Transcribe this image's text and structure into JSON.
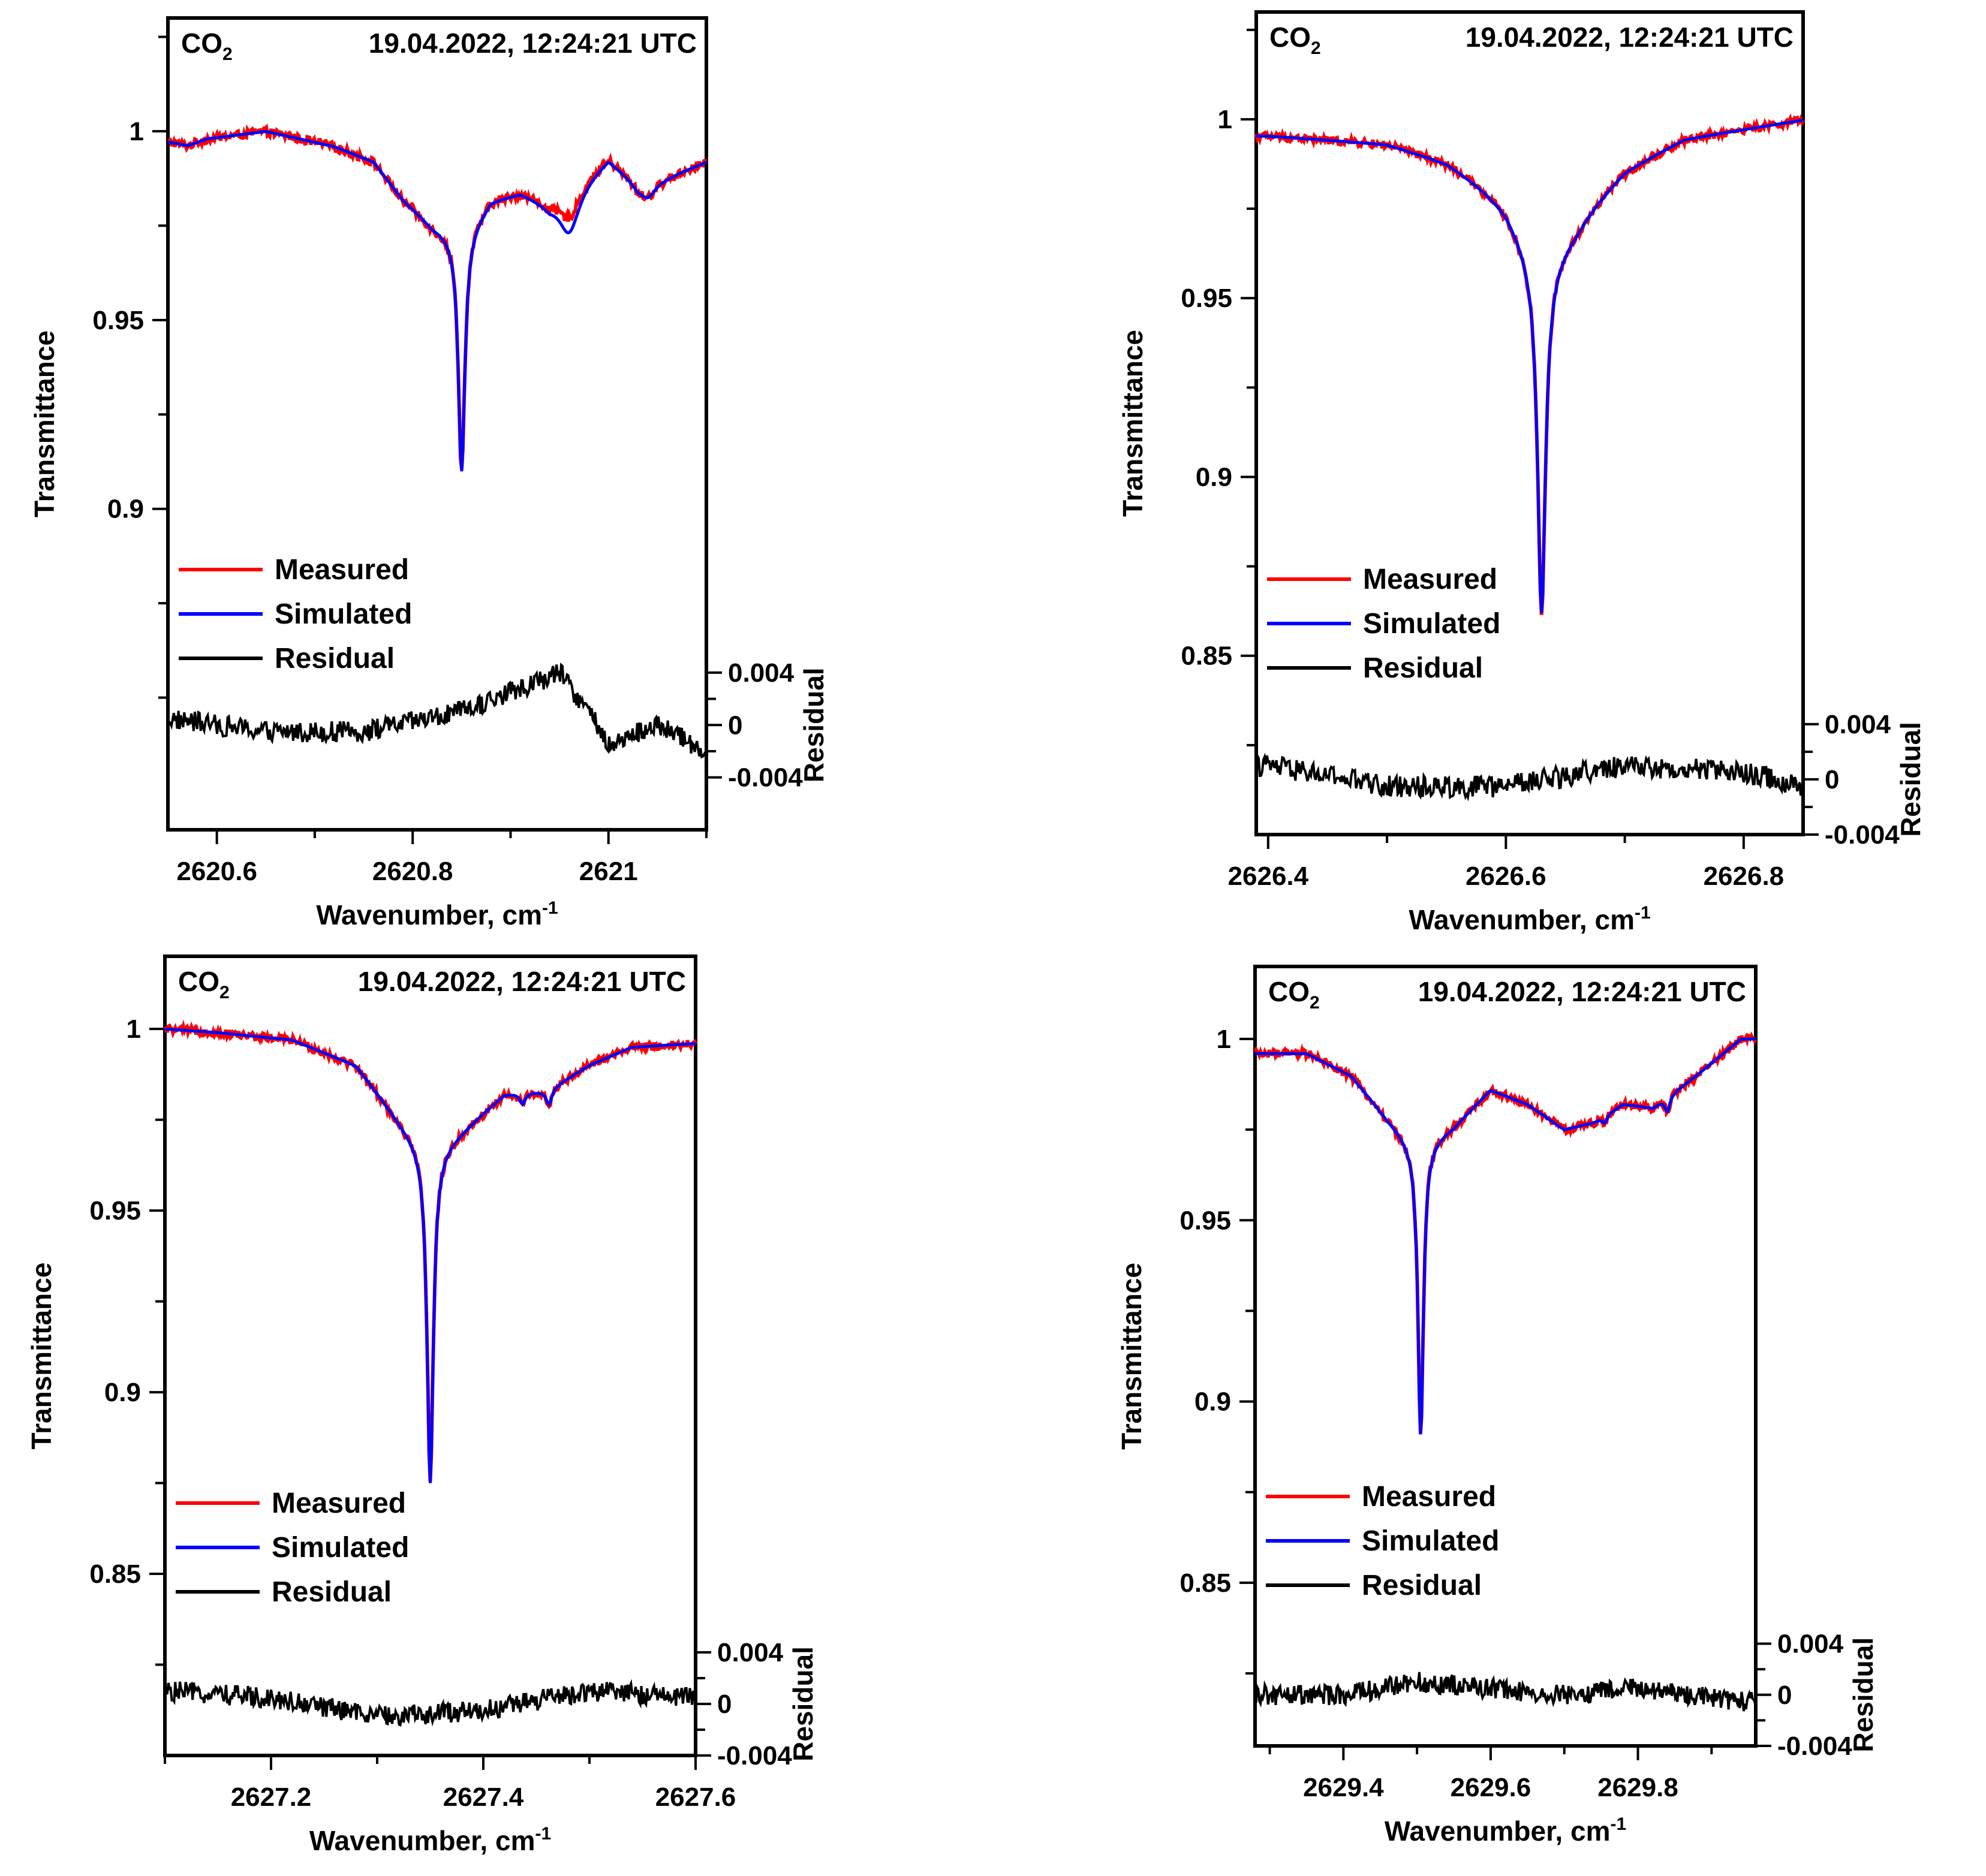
{
  "figure": {
    "colors": {
      "measured": "#ff0000",
      "simulated": "#0000ff",
      "residual": "#000000"
    },
    "legend": [
      {
        "key": "measured",
        "label": "Measured"
      },
      {
        "key": "simulated",
        "label": "Simulated"
      },
      {
        "key": "residual",
        "label": "Residual"
      }
    ]
  },
  "chart_data": [
    {
      "type": "line",
      "panel": "top-left",
      "species": "CO",
      "species_sub": "2",
      "timestamp": "19.04.2022, 12:24:21 UTC",
      "xlabel": "Wavenumber, cm",
      "xlabel_sup": "-1",
      "ylabel": "Transmittance",
      "y2label": "Residual",
      "xlim": [
        2620.55,
        2621.1
      ],
      "ylim": [
        0.815,
        1.03
      ],
      "y2lim": [
        -0.008,
        0.054
      ],
      "xticks": [
        2620.6,
        2620.8,
        2621
      ],
      "xtick_labels": [
        "2620.6",
        "2620.8",
        "2621"
      ],
      "yticks": [
        1,
        0.95,
        0.9
      ],
      "ytick_labels": [
        "1",
        "0.95",
        "0.9"
      ],
      "y2ticks": [
        0.004,
        0,
        -0.004
      ],
      "y2tick_labels": [
        "0.004",
        "0",
        "-0.004"
      ],
      "legend_position": "left",
      "baseline": [
        [
          2620.55,
          0.9972
        ],
        [
          2620.57,
          0.9962
        ],
        [
          2620.59,
          0.998
        ],
        [
          2620.65,
          1.0
        ],
        [
          2620.72,
          0.996
        ],
        [
          2620.76,
          0.992
        ],
        [
          2620.79,
          0.982
        ],
        [
          2620.82,
          0.975
        ],
        [
          2620.85,
          0.972
        ],
        [
          2620.88,
          0.982
        ],
        [
          2620.91,
          0.984
        ],
        [
          2620.94,
          0.981
        ],
        [
          2620.97,
          0.986
        ],
        [
          2621.0,
          0.993
        ],
        [
          2621.03,
          0.986
        ],
        [
          2621.06,
          0.988
        ],
        [
          2621.1,
          0.992
        ]
      ],
      "lines": [
        {
          "center": 2620.85,
          "depth": 0.062,
          "width": 0.004
        },
        {
          "center": 2620.96,
          "depth": 0.011,
          "width": 0.012
        },
        {
          "center": 2621.04,
          "depth": 0.004,
          "width": 0.01
        }
      ],
      "measured_offsets": [
        [
          2620.96,
          0.004,
          0.012
        ]
      ],
      "residual": [
        [
          2620.55,
          0.0005
        ],
        [
          2620.65,
          -0.0005
        ],
        [
          2620.75,
          -0.0005
        ],
        [
          2620.85,
          0.001
        ],
        [
          2620.95,
          0.004
        ],
        [
          2620.98,
          0.001
        ],
        [
          2621.0,
          -0.0015
        ],
        [
          2621.05,
          0.0
        ],
        [
          2621.1,
          -0.002
        ]
      ]
    },
    {
      "type": "line",
      "panel": "top-right",
      "species": "CO",
      "species_sub": "2",
      "timestamp": "19.04.2022, 12:24:21 UTC",
      "xlabel": "Wavenumber, cm",
      "xlabel_sup": "-1",
      "ylabel": "Transmittance",
      "y2label": "Residual",
      "xlim": [
        2626.39,
        2626.85
      ],
      "ylim": [
        0.8,
        1.03
      ],
      "y2lim": [
        -0.004,
        0.0556
      ],
      "xticks": [
        2626.4,
        2626.6,
        2626.8
      ],
      "xtick_labels": [
        "2626.4",
        "2626.6",
        "2626.8"
      ],
      "yticks": [
        1,
        0.95,
        0.9,
        0.85
      ],
      "ytick_labels": [
        "1",
        "0.95",
        "0.9",
        "0.85"
      ],
      "y2ticks": [
        0.004,
        0,
        -0.004
      ],
      "y2tick_labels": [
        "0.004",
        "0",
        "-0.004"
      ],
      "legend_position": "left",
      "baseline": [
        [
          2626.4,
          0.9955
        ],
        [
          2626.5,
          0.9935
        ],
        [
          2626.55,
          0.989
        ],
        [
          2626.6,
          0.98
        ],
        [
          2626.63,
          0.97
        ],
        [
          2626.66,
          0.975
        ],
        [
          2626.7,
          0.987
        ],
        [
          2626.75,
          0.995
        ],
        [
          2626.85,
          1.0
        ]
      ],
      "lines": [
        {
          "center": 2626.63,
          "depth": 0.096,
          "width": 0.004
        },
        {
          "center": 2626.63,
          "depth": 0.012,
          "width": 0.03
        }
      ],
      "measured_offsets": [],
      "residual": [
        [
          2626.4,
          0.001
        ],
        [
          2626.5,
          -0.0005
        ],
        [
          2626.6,
          -0.0005
        ],
        [
          2626.7,
          0.001
        ],
        [
          2626.8,
          0.0005
        ],
        [
          2626.85,
          -0.0005
        ]
      ]
    },
    {
      "type": "line",
      "panel": "bottom-left",
      "species": "CO",
      "species_sub": "2",
      "timestamp": "19.04.2022, 12:24:21 UTC",
      "xlabel": "Wavenumber, cm",
      "xlabel_sup": "-1",
      "ylabel": "Transmittance",
      "y2label": "Residual",
      "xlim": [
        2627.1,
        2627.6
      ],
      "ylim": [
        0.8,
        1.02
      ],
      "y2lim": [
        -0.004,
        0.058
      ],
      "xticks": [
        2627.2,
        2627.4,
        2627.6
      ],
      "xtick_labels": [
        "2627.2",
        "2627.4",
        "2627.6"
      ],
      "yticks": [
        1,
        0.95,
        0.9,
        0.85
      ],
      "ytick_labels": [
        "1",
        "0.95",
        "0.9",
        "0.85"
      ],
      "y2ticks": [
        0.004,
        0,
        -0.004
      ],
      "y2tick_labels": [
        "0.004",
        "0",
        "-0.004"
      ],
      "legend_position": "left",
      "baseline": [
        [
          2627.1,
          1.0
        ],
        [
          2627.15,
          0.999
        ],
        [
          2627.22,
          0.997
        ],
        [
          2627.28,
          0.99
        ],
        [
          2627.32,
          0.975
        ],
        [
          2627.35,
          0.965
        ],
        [
          2627.38,
          0.972
        ],
        [
          2627.42,
          0.982
        ],
        [
          2627.46,
          0.983
        ],
        [
          2627.5,
          0.99
        ],
        [
          2627.54,
          0.995
        ],
        [
          2627.6,
          0.996
        ]
      ],
      "lines": [
        {
          "center": 2627.35,
          "depth": 0.09,
          "width": 0.0035
        },
        {
          "center": 2627.437,
          "depth": 0.003,
          "width": 0.003
        },
        {
          "center": 2627.462,
          "depth": 0.004,
          "width": 0.003
        }
      ],
      "measured_offsets": [],
      "residual": [
        [
          2627.1,
          0.001
        ],
        [
          2627.2,
          0.0005
        ],
        [
          2627.3,
          -0.001
        ],
        [
          2627.4,
          -0.0005
        ],
        [
          2627.5,
          0.001
        ],
        [
          2627.6,
          0.0005
        ]
      ]
    },
    {
      "type": "line",
      "panel": "bottom-right",
      "species": "CO",
      "species_sub": "2",
      "timestamp": "19.04.2022, 12:24:21 UTC",
      "xlabel": "Wavenumber, cm",
      "xlabel_sup": "-1",
      "ylabel": "Transmittance",
      "y2label": "Residual",
      "xlim": [
        2629.28,
        2629.96
      ],
      "ylim": [
        0.805,
        1.02
      ],
      "y2lim": [
        -0.004,
        0.057
      ],
      "xticks": [
        2629.4,
        2629.6,
        2629.8
      ],
      "xtick_labels": [
        "2629.4",
        "2629.6",
        "2629.8"
      ],
      "yticks": [
        1,
        0.95,
        0.9,
        0.85
      ],
      "ytick_labels": [
        "1",
        "0.95",
        "0.9",
        "0.85"
      ],
      "y2ticks": [
        0.004,
        0,
        -0.004
      ],
      "y2tick_labels": [
        "0.004",
        "0",
        "-0.004"
      ],
      "legend_position": "left",
      "baseline": [
        [
          2629.28,
          0.996
        ],
        [
          2629.35,
          0.996
        ],
        [
          2629.41,
          0.99
        ],
        [
          2629.46,
          0.978
        ],
        [
          2629.5,
          0.97
        ],
        [
          2629.55,
          0.976
        ],
        [
          2629.6,
          0.986
        ],
        [
          2629.65,
          0.982
        ],
        [
          2629.7,
          0.975
        ],
        [
          2629.74,
          0.977
        ],
        [
          2629.78,
          0.982
        ],
        [
          2629.82,
          0.981
        ],
        [
          2629.88,
          0.99
        ],
        [
          2629.94,
          1.0
        ]
      ],
      "lines": [
        {
          "center": 2629.505,
          "depth": 0.08,
          "width": 0.0045
        },
        {
          "center": 2629.755,
          "depth": 0.002,
          "width": 0.004
        },
        {
          "center": 2629.84,
          "depth": 0.004,
          "width": 0.004
        }
      ],
      "measured_offsets": [],
      "residual": [
        [
          2629.28,
          0.0
        ],
        [
          2629.4,
          0.0
        ],
        [
          2629.5,
          0.001
        ],
        [
          2629.6,
          0.0005
        ],
        [
          2629.7,
          0.0
        ],
        [
          2629.8,
          0.0005
        ],
        [
          2629.94,
          -0.0005
        ]
      ]
    }
  ]
}
